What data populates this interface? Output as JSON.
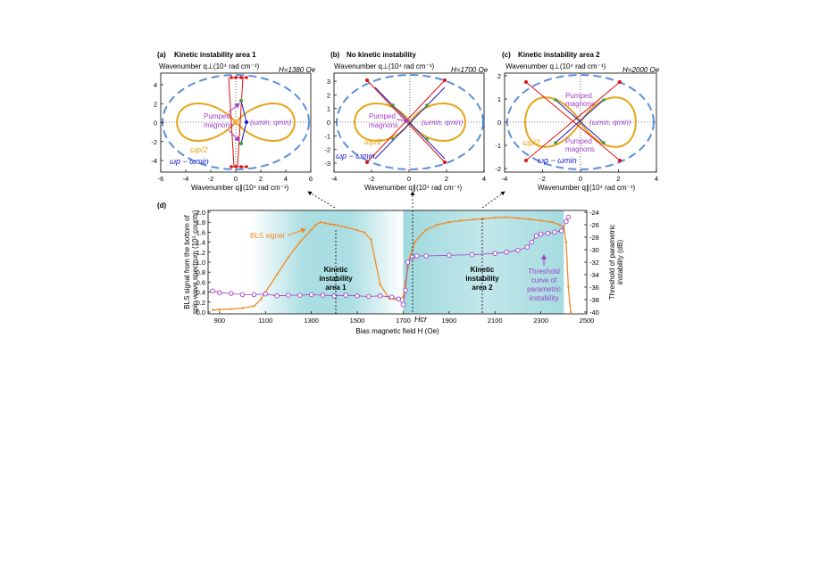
{
  "colors": {
    "orange": "#E8A317",
    "blue_dash": "#5B8FD9",
    "red": "#E01010",
    "navy": "#1A1AC8",
    "purple": "#A040C8",
    "green": "#2EA043",
    "bls_orange": "#F08A24",
    "teal": "#8FD3D8"
  },
  "panels": {
    "a": {
      "label": "(a)",
      "title": "Kinetic instability area 1",
      "field": "H=1380 Oe",
      "ylabel": "Wavenumber q⊥(10⁴ rad cm⁻¹)",
      "xlabel": "Wavenumber q∥(10⁴ rad cm⁻¹)",
      "xticks": [
        "-6",
        "-4",
        "-2",
        "0",
        "2",
        "4",
        "6"
      ],
      "yticks": [
        "4",
        "2",
        "0",
        "-2",
        "-4"
      ],
      "pumped": [
        "Pumped",
        "magnons"
      ],
      "wmin": "(ωmin, qmin)",
      "half": "ωp/2",
      "diff": "ωp − ωmin"
    },
    "b": {
      "label": "(b)",
      "title": "No kinetic instability",
      "field": "H=1700 Oe",
      "ylabel": "Wavenumber q⊥(10⁴ rad cm⁻¹)",
      "xlabel": "Wavenumber q∥(10⁴ rad cm⁻¹)",
      "xticks": [
        "-4",
        "-2",
        "0",
        "2",
        "4"
      ],
      "yticks": [
        "3",
        "2",
        "1",
        "0",
        "-1",
        "-2",
        "-3"
      ],
      "pumped": [
        "Pumped",
        "magnons"
      ],
      "wmin": "(ωmin, qmin)",
      "half": "ωp/2",
      "diff": "ωp − ωmin"
    },
    "c": {
      "label": "(c)",
      "title": "Kinetic instability area 2",
      "field": "H=2000 Oe",
      "ylabel": "Wavenumber q⊥(10⁴ rad cm⁻¹)",
      "xlabel": "Wavenumber q∥(10⁴ rad cm⁻¹)",
      "xticks": [
        "-4",
        "-2",
        "0",
        "2",
        "4"
      ],
      "yticks": [
        "2",
        "1",
        "0",
        "-1",
        "-2"
      ],
      "pumped": [
        "Pumped",
        "magnons"
      ],
      "wmin": "(ωmin, qmin)",
      "half": "ωp/2",
      "diff": "ωp − ωmin"
    }
  },
  "panel_d": {
    "label": "(d)",
    "xlabel": "Bias magnetic field H (Oe)",
    "ylabel_left": [
      "BLS signal from the bottom of",
      "spin-wave spectrum (10⁵ counts)"
    ],
    "ylabel_right": [
      "Threshold of parametric",
      "instability (dB)"
    ],
    "bls_label": "BLS signal",
    "area1": [
      "Kinetic",
      "instability",
      "area 1"
    ],
    "area2": [
      "Kinetic",
      "instability",
      "area 2"
    ],
    "threshold_label": [
      "Threshold",
      "curve of",
      "parametric",
      "instability"
    ],
    "hcr": "Hcr",
    "xticks": [
      "900",
      "1100",
      "1300",
      "1500",
      "1700",
      "1900",
      "2100",
      "2300",
      "2500"
    ],
    "yticks_left": [
      "0.0",
      "0.2",
      "0.4",
      "0.6",
      "0.8",
      "1.0",
      "1.2",
      "1.4",
      "1.6",
      "1.8",
      "2.0"
    ],
    "yticks_right": [
      "-24",
      "-26",
      "-28",
      "-30",
      "-32",
      "-34",
      "-36",
      "-38",
      "-40"
    ]
  },
  "chart_data": [
    {
      "type": "line",
      "xlabel": "Bias magnetic field H (Oe)",
      "ylabel": "BLS signal from the bottom of spin-wave spectrum (10⁵ counts)",
      "xlim": [
        850,
        2500
      ],
      "ylim": [
        0,
        2.0
      ],
      "series": [
        {
          "name": "BLS signal",
          "x": [
            870,
            900,
            950,
            1000,
            1050,
            1080,
            1100,
            1150,
            1200,
            1250,
            1300,
            1320,
            1340,
            1360,
            1380,
            1400,
            1450,
            1500,
            1530,
            1560,
            1600,
            1640,
            1680,
            1700,
            1710,
            1730,
            1750,
            1800,
            1850,
            1900,
            1950,
            2000,
            2050,
            2100,
            2150,
            2200,
            2250,
            2300,
            2350,
            2380,
            2400,
            2410,
            2420,
            2430
          ],
          "y": [
            0.04,
            0.05,
            0.06,
            0.08,
            0.12,
            0.25,
            0.4,
            0.75,
            1.1,
            1.4,
            1.65,
            1.75,
            1.8,
            1.78,
            1.76,
            1.75,
            1.7,
            1.64,
            1.6,
            1.45,
            0.55,
            0.27,
            0.25,
            0.3,
            0.6,
            1.1,
            1.4,
            1.65,
            1.75,
            1.8,
            1.83,
            1.85,
            1.87,
            1.89,
            1.9,
            1.88,
            1.86,
            1.83,
            1.8,
            1.75,
            1.7,
            1.4,
            0.5,
            0.0
          ]
        }
      ]
    },
    {
      "type": "scatter",
      "xlabel": "Bias magnetic field H (Oe)",
      "ylabel": "Threshold of parametric instability (dB)",
      "xlim": [
        850,
        2500
      ],
      "ylim": [
        -40,
        -24
      ],
      "series": [
        {
          "name": "Threshold curve of parametric instability",
          "x": [
            870,
            900,
            950,
            1000,
            1050,
            1100,
            1150,
            1200,
            1250,
            1300,
            1350,
            1400,
            1450,
            1500,
            1550,
            1600,
            1650,
            1680,
            1700,
            1710,
            1720,
            1740,
            1760,
            1800,
            1900,
            2000,
            2100,
            2150,
            2200,
            2240,
            2260,
            2280,
            2300,
            2330,
            2360,
            2390,
            2410,
            2420
          ],
          "y": [
            -36.6,
            -36.9,
            -37.0,
            -37.2,
            -37.2,
            -37.1,
            -37.4,
            -37.3,
            -37.3,
            -37.2,
            -37.3,
            -37.4,
            -37.3,
            -37.4,
            -37.5,
            -37.4,
            -37.6,
            -37.9,
            -38.8,
            -36.5,
            -32.0,
            -31.2,
            -31.0,
            -31.0,
            -30.9,
            -30.8,
            -30.6,
            -30.4,
            -30.1,
            -29.6,
            -28.8,
            -27.8,
            -27.5,
            -27.4,
            -27.2,
            -27.0,
            -25.5,
            -24.8
          ]
        }
      ]
    }
  ]
}
